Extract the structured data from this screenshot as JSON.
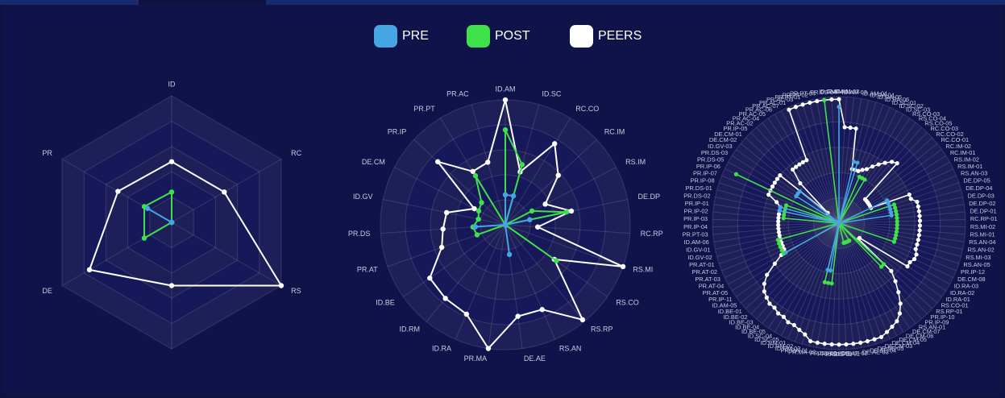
{
  "legend": [
    {
      "name": "PRE",
      "color": "#45a6e6"
    },
    {
      "name": "POST",
      "color": "#3fe14b"
    },
    {
      "name": "PEERS",
      "color": "#ffffff"
    }
  ],
  "chart_data": [
    {
      "type": "radar",
      "grid_shape": "polygon",
      "ylim": [
        0,
        5
      ],
      "yticks": [
        0,
        1,
        2,
        3,
        4,
        5
      ],
      "categories": [
        "ID",
        "RC",
        "RS",
        null,
        "DE",
        "PR"
      ],
      "series": [
        {
          "values": [
            0,
            0,
            0,
            0,
            0,
            1.1
          ]
        },
        {
          "values": [
            1.2,
            0,
            0,
            0,
            1.25,
            1.25
          ]
        },
        {
          "values": [
            2.4,
            2.4,
            5.0,
            2.5,
            3.75,
            2.45
          ]
        }
      ]
    },
    {
      "type": "radar",
      "grid_shape": "circle",
      "ylim": [
        0,
        5
      ],
      "yticks": [
        0,
        1,
        2,
        3,
        4,
        5
      ],
      "categories": [
        "ID.AM",
        "ID.SC",
        "RC.CO",
        "RC.IM",
        "RS.IM",
        "DE.DP",
        "RC.RP",
        "RS.MI",
        "RS.CO",
        "RS.RP",
        "RS.AN",
        "DE.AE",
        "PR.MA",
        "ID.RA",
        "ID.RM",
        "ID.BE",
        "PR.AT",
        "PR.DS",
        "ID.GV",
        "DE.CM",
        "PR.IP",
        "PR.PT",
        "PR.AC"
      ],
      "series": [
        {
          "values": [
            1.2,
            1.2,
            0,
            0,
            0,
            1.0,
            0,
            0,
            0,
            0,
            0,
            1.2,
            0,
            0,
            0,
            0,
            0,
            1.2,
            0,
            0,
            0,
            0,
            0
          ]
        },
        {
          "values": [
            3.8,
            2.5,
            0,
            0,
            1.2,
            2.5,
            0,
            0,
            2.5,
            0,
            0,
            0,
            0,
            0,
            0,
            0,
            1.2,
            1.3,
            1.1,
            1.2,
            1.3,
            2.3,
            0
          ]
        },
        {
          "values": [
            5.0,
            2.2,
            3.8,
            2.9,
            1.8,
            2.7,
            1.3,
            5.0,
            2.4,
            4.9,
            3.7,
            3.7,
            5.0,
            3.9,
            3.8,
            3.7,
            2.7,
            2.5,
            2.4,
            1.4,
            3.7,
            2.5,
            2.6
          ]
        }
      ]
    },
    {
      "type": "radar",
      "grid_shape": "circle",
      "ylim": [
        0,
        5
      ],
      "yticks": [
        0,
        1,
        2,
        3,
        4,
        5
      ],
      "categories": [
        "ID.AM-01",
        "ID.AM-02",
        "ID.AM-03",
        "ID.AM-04",
        "ID.RA-04",
        "ID.RA-05",
        "ID.RA-06",
        "ID.SC-01",
        "ID.SC-02",
        "ID.SC-03",
        "RS.CO-03",
        "RS.CO-04",
        "RS.CO-05",
        "RC.CO-03",
        "RC.CO-02",
        "RC.CO-01",
        "RC.IM-02",
        "RC.IM-01",
        "RS.IM-02",
        "RS.IM-01",
        "RS.AN-03",
        "DE.DP-05",
        "DE.DP-04",
        "DE.DP-03",
        "DE.DP-02",
        "DE.DP-01",
        "RC.RP-01",
        "RS.MI-02",
        "RS.MI-01",
        "RS.AN-04",
        "RS.AN-02",
        "RS.MI-03",
        "RS.AN-05",
        "PR.IP-12",
        "DE.CM-08",
        "ID.RA-03",
        "ID.RA-02",
        "ID.RA-01",
        "RS.CO-01",
        "RS.RP-01",
        "PR.IP-10",
        "PR.IP-09",
        "RS.AN-01",
        "DE.CM-07",
        "DE.CM-06",
        "DE.CM-05",
        "DE.CM-04",
        "DE.CM-03",
        "DE.AE-05",
        "DE.AE-04",
        "DE.AE-03",
        "DE.AE-02",
        "DE.AE-01",
        "PR.DS-08",
        "PR.DS-07",
        "PR.DS-06",
        "PR.MA-02",
        "PR.MA-01",
        "ID.RM-03",
        "ID.RM-02",
        "ID.RM-01",
        "ID.SC-05",
        "ID.SC-04",
        "ID.BE-05",
        "ID.BE-04",
        "ID.BE-03",
        "ID.BE-02",
        "ID.BE-01",
        "ID.AM-05",
        "PR.IP-11",
        "PR.AT-05",
        "PR.AT-04",
        "PR.AT-03",
        "PR.AT-02",
        "PR.AT-01",
        "ID.GV-02",
        "ID.GV-01",
        "ID.AM-06",
        "PR.PT-03",
        "PR.IP-04",
        "PR.IP-03",
        "PR.IP-02",
        "PR.IP-01",
        "PR.DS-02",
        "PR.DS-01",
        "PR.IP-08",
        "PR.IP-07",
        "PR.IP-06",
        "PR.DS-05",
        "PR.DS-03",
        "ID.GV-03",
        "DE.CM-02",
        "DE.CM-01",
        "PR.IP-05",
        "PR.AC-02",
        "PR.AC-04",
        "PR.AC-05",
        "PR.AC-06",
        "PR.AC-07",
        "PR.AC-01",
        "PR.AC-03",
        "PR.PT-01",
        "PR.PT-02",
        "PR.PT-04",
        "PR.DS-04",
        "ID.GV-04"
      ],
      "series": [
        {
          "values": [
            4.6,
            0,
            0,
            0,
            2.5,
            2.5,
            0,
            0,
            0,
            0,
            0,
            0,
            0,
            0,
            0,
            0,
            0,
            0,
            0,
            2.1,
            2.1,
            2.1,
            2.1,
            2.1,
            2.1,
            0,
            0,
            0,
            0,
            0,
            0,
            0,
            0,
            0,
            0,
            0,
            0,
            0,
            0,
            0,
            0,
            0,
            0,
            0,
            0,
            0,
            0,
            0,
            0,
            0,
            0,
            0,
            0,
            0,
            0,
            0,
            1.9,
            1.9,
            0,
            0,
            0,
            0,
            0,
            0,
            0,
            0,
            0,
            0,
            0,
            0,
            0,
            2.4,
            0,
            0,
            0,
            0,
            0,
            0,
            0,
            0,
            0,
            0,
            0,
            2.4,
            2.4,
            0,
            0,
            0,
            0,
            2.0,
            2.0,
            2.0,
            0,
            0,
            0,
            0,
            0,
            0,
            0,
            0,
            0,
            0,
            0,
            0,
            0,
            0
          ]
        },
        {
          "values": [
            0,
            0,
            0,
            0,
            0,
            0,
            0,
            2.0,
            2.0,
            2.0,
            0,
            0,
            0,
            0,
            0,
            0,
            0,
            0,
            0,
            0,
            0,
            2.3,
            2.3,
            2.3,
            2.3,
            2.3,
            2.3,
            2.3,
            2.3,
            2.3,
            2.3,
            2.3,
            2.3,
            0,
            0,
            0,
            0,
            0,
            0,
            2.4,
            2.4,
            0,
            0,
            0,
            0.8,
            0.8,
            0.8,
            0.8,
            0.8,
            0.8,
            0,
            0,
            0,
            0,
            0,
            2.4,
            2.4,
            2.4,
            0,
            0,
            0,
            0,
            0,
            0,
            0,
            0,
            0,
            0,
            0,
            0,
            0,
            2.5,
            2.5,
            2.5,
            2.5,
            2.5,
            0,
            0,
            0,
            0,
            0,
            2.2,
            2.2,
            2.2,
            2.2,
            2.2,
            0,
            4.5,
            0,
            0,
            0,
            0,
            0,
            0,
            0,
            0,
            0,
            0,
            0,
            0,
            0,
            0,
            0,
            0,
            4.9,
            0
          ]
        },
        {
          "values": [
            4.9,
            3.8,
            3.8,
            3.8,
            2.2,
            2.2,
            2.2,
            2.3,
            2.4,
            2.6,
            2.8,
            3.0,
            3.2,
            3.3,
            1.4,
            1.4,
            1.4,
            1.4,
            1.4,
            1.4,
            3.0,
            3.0,
            3.2,
            3.2,
            3.2,
            3.2,
            3.2,
            3.2,
            3.2,
            3.2,
            3.2,
            3.2,
            3.2,
            3.3,
            3.3,
            3.2,
            3.2,
            1.0,
            1.0,
            2.8,
            3.2,
            3.6,
            4.0,
            4.3,
            4.5,
            4.6,
            4.7,
            4.8,
            4.8,
            4.8,
            4.8,
            4.8,
            4.8,
            4.8,
            4.8,
            4.8,
            4.8,
            4.8,
            4.6,
            4.5,
            4.4,
            4.4,
            4.3,
            4.3,
            4.2,
            4.2,
            4.1,
            4.0,
            3.8,
            3.5,
            3.0,
            2.6,
            2.4,
            2.4,
            2.4,
            2.4,
            2.4,
            2.4,
            2.4,
            2.4,
            2.4,
            2.4,
            2.4,
            2.4,
            2.4,
            2.6,
            3.0,
            3.0,
            3.0,
            3.0,
            3.0,
            3.0,
            0.6,
            2.2,
            2.8,
            2.8,
            2.8,
            2.8,
            2.8,
            4.9,
            4.9,
            4.9,
            4.9,
            4.9,
            4.9,
            4.9
          ]
        }
      ]
    }
  ]
}
